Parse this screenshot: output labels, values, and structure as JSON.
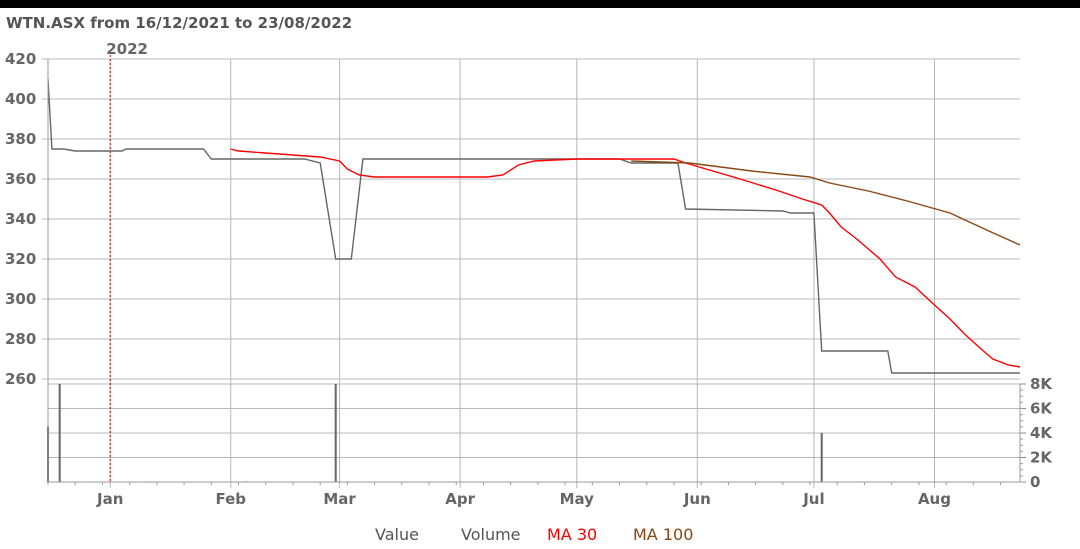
{
  "chart_data": {
    "type": "line",
    "title": "WTN.ASX from 16/12/2021 to 23/08/2022",
    "year_marker": {
      "date": "2022-01-01",
      "label": "2022"
    },
    "x_range": [
      "2021-12-16",
      "2022-08-23"
    ],
    "x_ticks": [
      {
        "date": "2022-01-01",
        "label": "Jan"
      },
      {
        "date": "2022-02-01",
        "label": "Feb"
      },
      {
        "date": "2022-03-01",
        "label": "Mar"
      },
      {
        "date": "2022-04-01",
        "label": "Apr"
      },
      {
        "date": "2022-05-01",
        "label": "May"
      },
      {
        "date": "2022-06-01",
        "label": "Jun"
      },
      {
        "date": "2022-07-01",
        "label": "Jul"
      },
      {
        "date": "2022-08-01",
        "label": "Aug"
      }
    ],
    "price_axis": {
      "ylim": [
        260,
        420
      ],
      "ticks": [
        420,
        400,
        380,
        360,
        340,
        320,
        300,
        280,
        260
      ]
    },
    "volume_axis": {
      "ylim": [
        0,
        8000
      ],
      "ticks": [
        {
          "value": 8000,
          "label": "8K"
        },
        {
          "value": 6000,
          "label": "6K"
        },
        {
          "value": 4000,
          "label": "4K"
        },
        {
          "value": 2000,
          "label": "2K"
        },
        {
          "value": 0,
          "label": "0"
        }
      ]
    },
    "grid": true,
    "legend_position": "bottom",
    "series": [
      {
        "name": "Value",
        "color": "#666666",
        "points": [
          [
            "2021-12-16",
            410
          ],
          [
            "2021-12-17",
            375
          ],
          [
            "2021-12-20",
            375
          ],
          [
            "2021-12-23",
            374
          ],
          [
            "2022-01-04",
            374
          ],
          [
            "2022-01-05",
            375
          ],
          [
            "2022-01-25",
            375
          ],
          [
            "2022-01-27",
            370
          ],
          [
            "2022-02-20",
            370
          ],
          [
            "2022-02-24",
            368
          ],
          [
            "2022-02-28",
            320
          ],
          [
            "2022-03-04",
            320
          ],
          [
            "2022-03-07",
            370
          ],
          [
            "2022-05-12",
            370
          ],
          [
            "2022-05-15",
            368
          ],
          [
            "2022-05-27",
            368
          ],
          [
            "2022-05-29",
            345
          ],
          [
            "2022-06-23",
            344
          ],
          [
            "2022-06-25",
            343
          ],
          [
            "2022-07-01",
            343
          ],
          [
            "2022-07-03",
            274
          ],
          [
            "2022-07-20",
            274
          ],
          [
            "2022-07-21",
            263
          ],
          [
            "2022-08-23",
            263
          ]
        ]
      },
      {
        "name": "Volume",
        "color": "#666666",
        "bars": [
          [
            "2021-12-16",
            4500
          ],
          [
            "2021-12-19",
            8000
          ],
          [
            "2022-01-10",
            50
          ],
          [
            "2022-02-05",
            60
          ],
          [
            "2022-02-28",
            8200
          ],
          [
            "2022-04-01",
            40
          ],
          [
            "2022-07-03",
            4000
          ]
        ]
      },
      {
        "name": "MA 30",
        "color": "#ff0000",
        "points": [
          [
            "2022-02-01",
            375
          ],
          [
            "2022-02-03",
            374
          ],
          [
            "2022-02-10",
            373
          ],
          [
            "2022-02-17",
            372
          ],
          [
            "2022-02-24",
            371
          ],
          [
            "2022-03-01",
            369
          ],
          [
            "2022-03-03",
            365
          ],
          [
            "2022-03-06",
            362
          ],
          [
            "2022-03-10",
            361
          ],
          [
            "2022-03-25",
            361
          ],
          [
            "2022-04-08",
            361
          ],
          [
            "2022-04-12",
            362
          ],
          [
            "2022-04-16",
            367
          ],
          [
            "2022-04-20",
            369
          ],
          [
            "2022-05-01",
            370
          ],
          [
            "2022-05-26",
            370
          ],
          [
            "2022-05-29",
            368
          ],
          [
            "2022-06-05",
            364
          ],
          [
            "2022-06-12",
            360
          ],
          [
            "2022-06-17",
            357
          ],
          [
            "2022-06-22",
            354
          ],
          [
            "2022-06-28",
            350
          ],
          [
            "2022-07-03",
            347
          ],
          [
            "2022-07-05",
            343
          ],
          [
            "2022-07-08",
            336
          ],
          [
            "2022-07-12",
            330
          ],
          [
            "2022-07-15",
            325
          ],
          [
            "2022-07-18",
            320
          ],
          [
            "2022-07-22",
            311
          ],
          [
            "2022-07-27",
            306
          ],
          [
            "2022-08-01",
            297
          ],
          [
            "2022-08-05",
            290
          ],
          [
            "2022-08-09",
            282
          ],
          [
            "2022-08-13",
            275
          ],
          [
            "2022-08-16",
            270
          ],
          [
            "2022-08-20",
            267
          ],
          [
            "2022-08-23",
            266
          ]
        ]
      },
      {
        "name": "MA 100",
        "color": "#8b4513",
        "points": [
          [
            "2022-05-15",
            369
          ],
          [
            "2022-05-30",
            368
          ],
          [
            "2022-06-15",
            364
          ],
          [
            "2022-06-30",
            361
          ],
          [
            "2022-07-05",
            358
          ],
          [
            "2022-07-15",
            354
          ],
          [
            "2022-07-25",
            349
          ],
          [
            "2022-08-05",
            343
          ],
          [
            "2022-08-15",
            334
          ],
          [
            "2022-08-23",
            327
          ]
        ]
      }
    ]
  }
}
